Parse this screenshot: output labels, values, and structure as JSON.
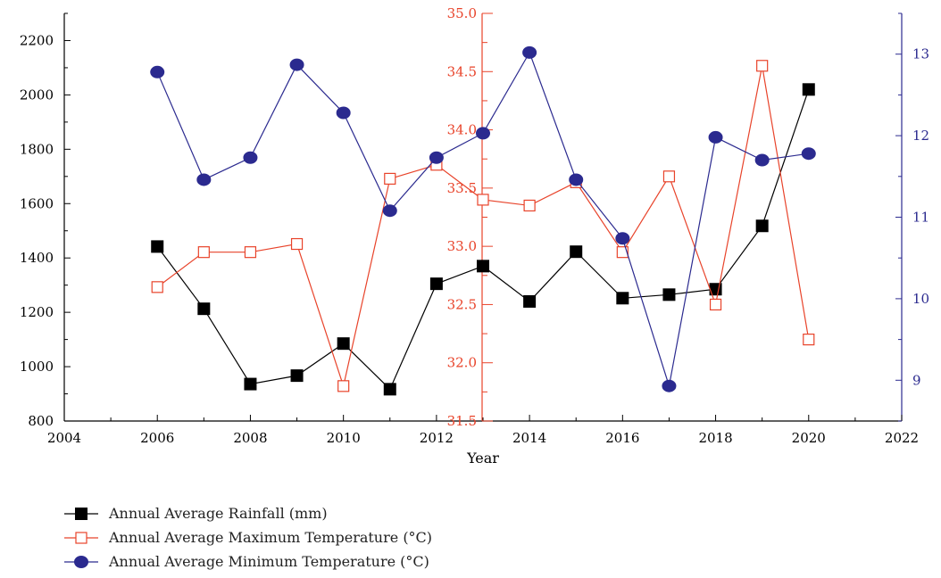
{
  "chart_data": {
    "type": "line",
    "title": "",
    "xlabel": "Year",
    "x_axis": {
      "range": [
        2004,
        2022
      ],
      "ticks": [
        2004,
        2006,
        2008,
        2010,
        2012,
        2014,
        2016,
        2018,
        2020,
        2022
      ]
    },
    "y_axes": {
      "left": {
        "label": "",
        "range": [
          800,
          2300
        ],
        "ticks": [
          800,
          1000,
          1200,
          1400,
          1600,
          1800,
          2000,
          2200
        ],
        "color": "#000000"
      },
      "middle": {
        "label": "",
        "range": [
          31.5,
          35.0
        ],
        "ticks": [
          "31.5",
          "32.0",
          "32.5",
          "33.0",
          "33.5",
          "34.0",
          "34.5",
          "35.0"
        ],
        "color": "#e8432a"
      },
      "right": {
        "label": "",
        "range": [
          8.5,
          13.5
        ],
        "ticks": [
          9,
          10,
          11,
          12,
          13
        ],
        "color": "#2b2a8f"
      }
    },
    "grid": false,
    "legend_position": "bottom-left",
    "x": [
      2006,
      2007,
      2008,
      2009,
      2010,
      2011,
      2012,
      2013,
      2014,
      2015,
      2016,
      2017,
      2018,
      2019,
      2020
    ],
    "series": [
      {
        "name": "Annual Average Rainfall (mm)",
        "axis": "left",
        "color": "#000000",
        "marker": "filled-square",
        "values": [
          1442,
          1213,
          936,
          967,
          1085,
          917,
          1305,
          1370,
          1240,
          1423,
          1252,
          1265,
          1285,
          1518,
          2020
        ]
      },
      {
        "name": "Annual Average Maximum Temperature (°C)",
        "axis": "middle",
        "color": "#e8432a",
        "marker": "hollow-square",
        "values": [
          32.65,
          32.95,
          32.95,
          33.02,
          31.8,
          33.58,
          33.7,
          33.4,
          33.35,
          33.55,
          32.95,
          33.6,
          32.5,
          34.55,
          32.2
        ]
      },
      {
        "name": "Annual Average Minimum Temperature (°C)",
        "axis": "right",
        "color": "#2b2a8f",
        "marker": "filled-circle",
        "values": [
          12.78,
          11.46,
          11.73,
          12.87,
          12.28,
          11.08,
          11.73,
          12.03,
          13.02,
          11.46,
          10.74,
          8.93,
          11.98,
          11.7,
          11.78
        ]
      }
    ]
  }
}
